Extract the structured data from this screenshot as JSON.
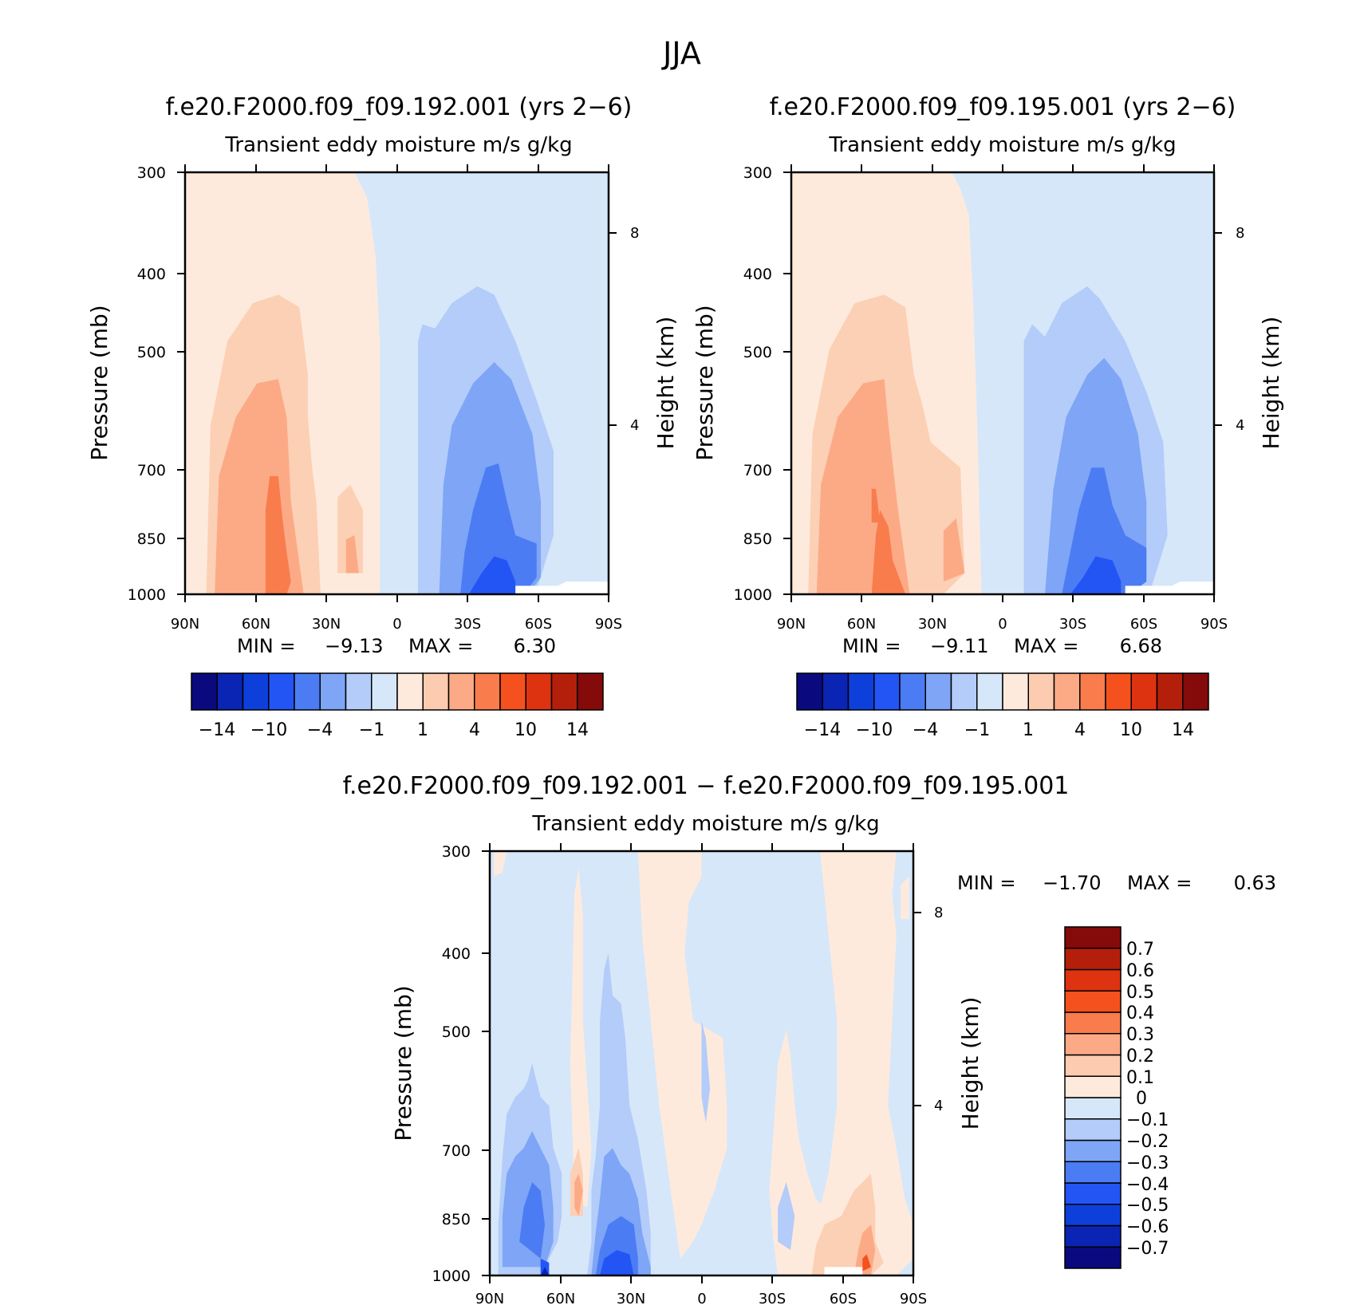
{
  "figure_title": "JJA",
  "colors": {
    "ref_palette": [
      "#0a0a7e",
      "#0a24b4",
      "#0d3fdb",
      "#2355f5",
      "#4b7cf3",
      "#7ea5f6",
      "#b3ccf9",
      "#d6e7fa",
      "#feeadc",
      "#fdcbb0",
      "#fcaa86",
      "#f97c4d",
      "#f4511e",
      "#de3311",
      "#b41f0b",
      "#850a0a"
    ],
    "diff_palette": [
      "#0a0a7e",
      "#0a24b4",
      "#0d3fdb",
      "#2355f5",
      "#4b7cf3",
      "#7ea5f6",
      "#b3ccf9",
      "#d6e7fa",
      "#feeadc",
      "#fdcbb0",
      "#fcaa86",
      "#f97c4d",
      "#f4511e",
      "#de3311",
      "#b41f0b",
      "#850a0a"
    ]
  },
  "chart_data": [
    {
      "type": "heatmap",
      "title": "f.e20.F2000.f09_f09.192.001 (yrs 2-6)",
      "subtitle": "Transient eddy moisture m/s g/kg",
      "ylabel": "Pressure (mb)",
      "y2label": "Height (km)",
      "x_ticks": [
        "90N",
        "60N",
        "30N",
        "0",
        "30S",
        "60S",
        "90S"
      ],
      "y_ticks": [
        "300",
        "400",
        "500",
        "700",
        "850",
        "1000"
      ],
      "y2_ticks": [
        "8",
        "4"
      ],
      "stats": {
        "min_label": "MIN =",
        "min": "-9.13",
        "max_label": "MAX =",
        "max": "6.30"
      },
      "colorbar_labels": [
        "-14",
        "-10",
        "-4",
        "-1",
        "1",
        "4",
        "10",
        "14"
      ],
      "contour_levels": [
        -16,
        -14,
        -12,
        -10,
        -8,
        -4,
        -2,
        -1,
        1,
        2,
        4,
        8,
        10,
        12,
        14
      ]
    },
    {
      "type": "heatmap",
      "title": "f.e20.F2000.f09_f09.195.001 (yrs 2-6)",
      "subtitle": "Transient eddy moisture m/s g/kg",
      "ylabel": "Pressure (mb)",
      "y2label": "Height (km)",
      "x_ticks": [
        "90N",
        "60N",
        "30N",
        "0",
        "30S",
        "60S",
        "90S"
      ],
      "y_ticks": [
        "300",
        "400",
        "500",
        "700",
        "850",
        "1000"
      ],
      "y2_ticks": [
        "8",
        "4"
      ],
      "stats": {
        "min_label": "MIN =",
        "min": "-9.11",
        "max_label": "MAX =",
        "max": "6.68"
      },
      "colorbar_labels": [
        "-14",
        "-10",
        "-4",
        "-1",
        "1",
        "4",
        "10",
        "14"
      ],
      "contour_levels": [
        -16,
        -14,
        -12,
        -10,
        -8,
        -4,
        -2,
        -1,
        1,
        2,
        4,
        8,
        10,
        12,
        14
      ]
    },
    {
      "type": "heatmap",
      "title": "f.e20.F2000.f09_f09.192.001 - f.e20.F2000.f09_f09.195.001",
      "subtitle": "Transient eddy moisture m/s g/kg",
      "ylabel": "Pressure (mb)",
      "y2label": "Height (km)",
      "x_ticks": [
        "90N",
        "60N",
        "30N",
        "0",
        "30S",
        "60S",
        "90S"
      ],
      "y_ticks": [
        "300",
        "400",
        "500",
        "700",
        "850",
        "1000"
      ],
      "y2_ticks": [
        "8",
        "4"
      ],
      "stats": {
        "min_label": "MIN =",
        "min": "-1.70",
        "max_label": "MAX =",
        "max": "0.63"
      },
      "colorbar_labels": [
        "0.7",
        "0.6",
        "0.5",
        "0.4",
        "0.3",
        "0.2",
        "0.1",
        "0",
        "-0.1",
        "-0.2",
        "-0.3",
        "-0.4",
        "-0.5",
        "-0.6",
        "-0.7"
      ],
      "contour_levels": [
        -0.7,
        -0.6,
        -0.5,
        -0.4,
        -0.3,
        -0.2,
        -0.1,
        0,
        0.1,
        0.2,
        0.3,
        0.4,
        0.5,
        0.6,
        0.7
      ]
    }
  ]
}
